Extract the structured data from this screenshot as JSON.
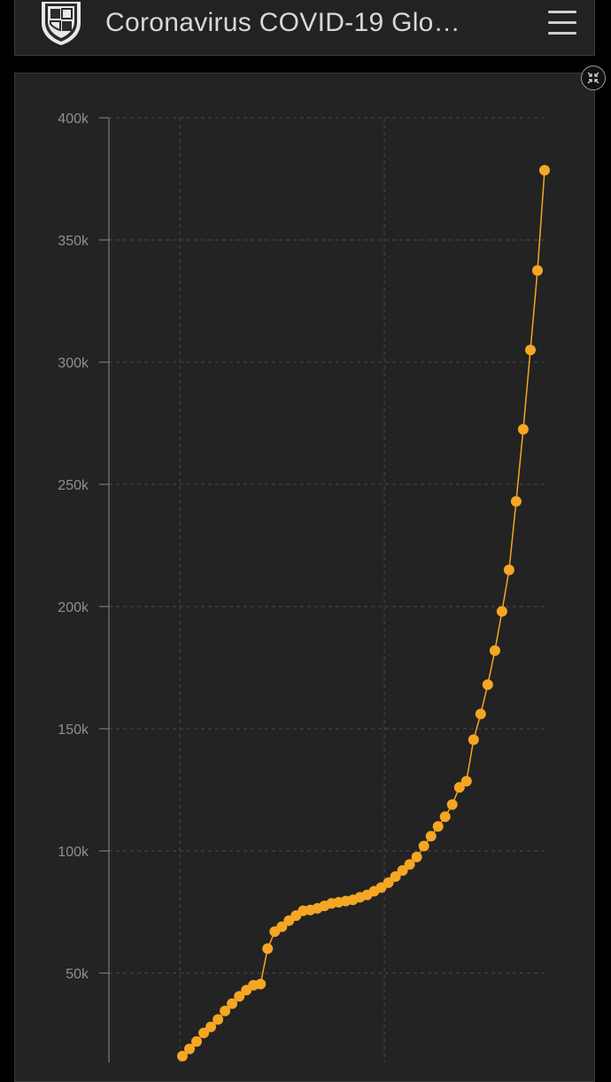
{
  "header": {
    "title": "Coronavirus COVID-19 Glo…",
    "logo_icon": "university-shield-icon",
    "menu_icon": "hamburger-menu-icon"
  },
  "panel": {
    "collapse_icon": "collapse-arrows-icon"
  },
  "colors": {
    "series": "#f5a623",
    "background": "#232323",
    "gridline": "#4a4a4a"
  },
  "chart_data": {
    "type": "line",
    "ylim": [
      0,
      400000
    ],
    "y_ticks": [
      "50k",
      "100k",
      "150k",
      "200k",
      "250k",
      "300k",
      "350k",
      "400k"
    ],
    "y_tick_values": [
      50000,
      100000,
      150000,
      200000,
      250000,
      300000,
      350000,
      400000
    ],
    "grid": true,
    "series": [
      {
        "values": [
          16000,
          19000,
          22000,
          25500,
          28000,
          31000,
          34500,
          37500,
          40500,
          43000,
          45000,
          45500,
          60000,
          67000,
          69000,
          71500,
          73500,
          75500,
          75800,
          76500,
          77500,
          78500,
          79000,
          79500,
          80000,
          81000,
          82000,
          83500,
          85000,
          87000,
          89500,
          92000,
          94500,
          97500,
          102000,
          106000,
          110000,
          114000,
          119000,
          126000,
          128500,
          145500,
          156000,
          168000,
          182000,
          198000,
          215000,
          243000,
          272500,
          305000,
          337500,
          378500
        ]
      }
    ]
  }
}
